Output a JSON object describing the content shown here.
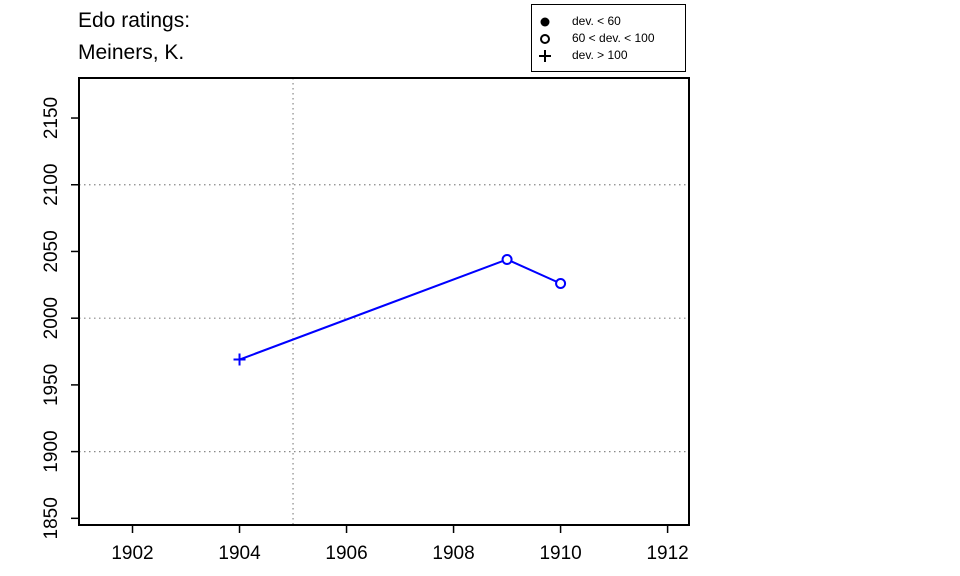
{
  "title": {
    "line1": "Edo ratings:",
    "line2": "Meiners, K."
  },
  "legend": {
    "items": [
      {
        "symbol": "filled-circle",
        "label": "dev. < 60"
      },
      {
        "symbol": "open-circle",
        "label": "60 < dev. < 100"
      },
      {
        "symbol": "plus",
        "label": "dev. > 100"
      }
    ]
  },
  "chart_data": {
    "type": "line",
    "x": [
      1904,
      1909,
      1910
    ],
    "series": [
      {
        "values": [
          1969,
          2044,
          2026
        ],
        "markers": [
          "plus",
          "open-circle",
          "open-circle"
        ],
        "color": "#0000ff"
      }
    ],
    "xlim": [
      1901,
      1912.4
    ],
    "ylim": [
      1845,
      2180
    ],
    "xticks": [
      1902,
      1904,
      1906,
      1908,
      1910,
      1912
    ],
    "yticks": [
      1850,
      1900,
      1950,
      2000,
      2050,
      2100,
      2150
    ],
    "xgrid": [
      1905
    ],
    "ygrid": [
      1900,
      2000,
      2100
    ],
    "grid": "dotted",
    "legend_position": "top-right"
  }
}
